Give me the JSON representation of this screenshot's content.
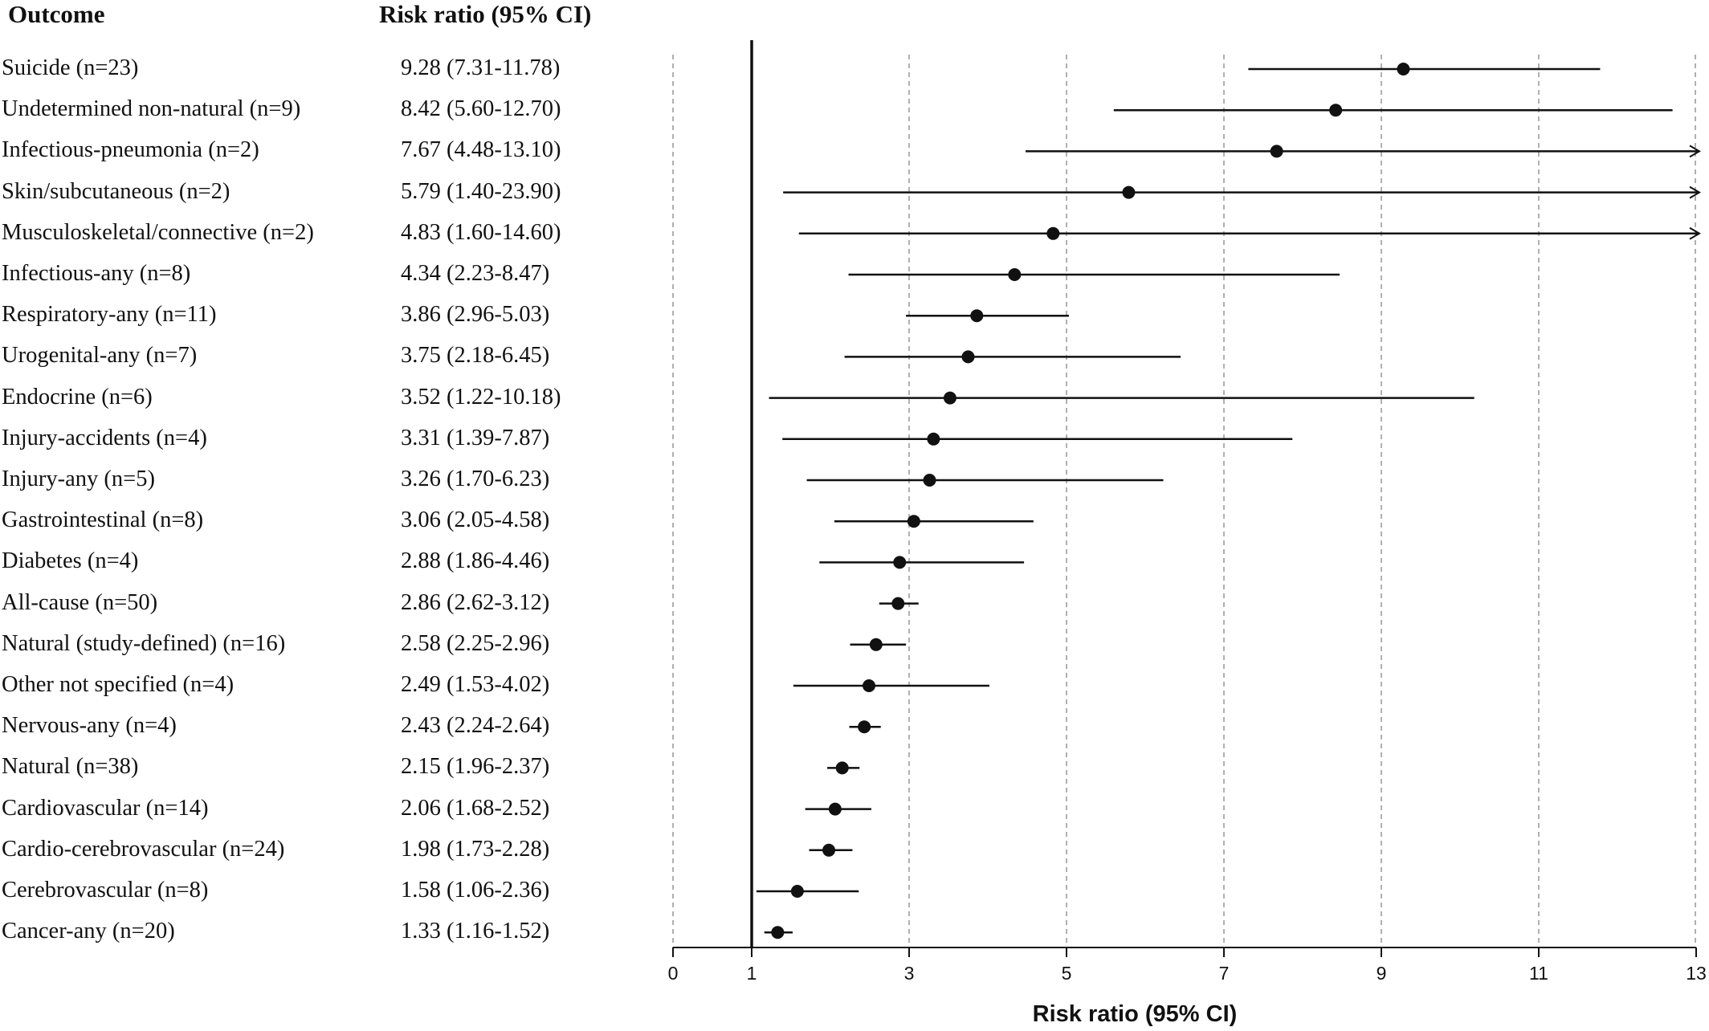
{
  "headers": {
    "outcome": "Outcome",
    "risk_ratio": "Risk ratio (95% CI)"
  },
  "chart_data": {
    "type": "forest",
    "xlabel": "Risk ratio (95% CI)",
    "xlim": [
      0,
      13
    ],
    "x_ticks": [
      0,
      1,
      3,
      5,
      7,
      9,
      11,
      13
    ],
    "reference_line": 1,
    "grid": "vertical dashed at odd ticks",
    "rows": [
      {
        "label": "Suicide (n=23)",
        "ci_text": "9.28 (7.31-11.78)",
        "rr": 9.28,
        "lower": 7.31,
        "upper": 11.78
      },
      {
        "label": "Undetermined non-natural (n=9)",
        "ci_text": "8.42 (5.60-12.70)",
        "rr": 8.42,
        "lower": 5.6,
        "upper": 12.7
      },
      {
        "label": "Infectious-pneumonia (n=2)",
        "ci_text": "7.67 (4.48-13.10)",
        "rr": 7.67,
        "lower": 4.48,
        "upper": 13.1
      },
      {
        "label": "Skin/subcutaneous (n=2)",
        "ci_text": "5.79 (1.40-23.90)",
        "rr": 5.79,
        "lower": 1.4,
        "upper": 23.9
      },
      {
        "label": "Musculoskeletal/connective (n=2)",
        "ci_text": "4.83 (1.60-14.60)",
        "rr": 4.83,
        "lower": 1.6,
        "upper": 14.6
      },
      {
        "label": "Infectious-any (n=8)",
        "ci_text": "4.34 (2.23-8.47)",
        "rr": 4.34,
        "lower": 2.23,
        "upper": 8.47
      },
      {
        "label": "Respiratory-any (n=11)",
        "ci_text": "3.86 (2.96-5.03)",
        "rr": 3.86,
        "lower": 2.96,
        "upper": 5.03
      },
      {
        "label": "Urogenital-any (n=7)",
        "ci_text": "3.75 (2.18-6.45)",
        "rr": 3.75,
        "lower": 2.18,
        "upper": 6.45
      },
      {
        "label": "Endocrine (n=6)",
        "ci_text": "3.52 (1.22-10.18)",
        "rr": 3.52,
        "lower": 1.22,
        "upper": 10.18
      },
      {
        "label": "Injury-accidents (n=4)",
        "ci_text": "3.31 (1.39-7.87)",
        "rr": 3.31,
        "lower": 1.39,
        "upper": 7.87
      },
      {
        "label": "Injury-any (n=5)",
        "ci_text": "3.26 (1.70-6.23)",
        "rr": 3.26,
        "lower": 1.7,
        "upper": 6.23
      },
      {
        "label": "Gastrointestinal (n=8)",
        "ci_text": "3.06 (2.05-4.58)",
        "rr": 3.06,
        "lower": 2.05,
        "upper": 4.58
      },
      {
        "label": "Diabetes (n=4)",
        "ci_text": "2.88 (1.86-4.46)",
        "rr": 2.88,
        "lower": 1.86,
        "upper": 4.46
      },
      {
        "label": "All-cause (n=50)",
        "ci_text": "2.86 (2.62-3.12)",
        "rr": 2.86,
        "lower": 2.62,
        "upper": 3.12
      },
      {
        "label": "Natural (study-defined) (n=16)",
        "ci_text": "2.58 (2.25-2.96)",
        "rr": 2.58,
        "lower": 2.25,
        "upper": 2.96
      },
      {
        "label": "Other not specified (n=4)",
        "ci_text": "2.49 (1.53-4.02)",
        "rr": 2.49,
        "lower": 1.53,
        "upper": 4.02
      },
      {
        "label": "Nervous-any (n=4)",
        "ci_text": "2.43 (2.24-2.64)",
        "rr": 2.43,
        "lower": 2.24,
        "upper": 2.64
      },
      {
        "label": "Natural (n=38)",
        "ci_text": "2.15 (1.96-2.37)",
        "rr": 2.15,
        "lower": 1.96,
        "upper": 2.37
      },
      {
        "label": "Cardiovascular (n=14)",
        "ci_text": "2.06 (1.68-2.52)",
        "rr": 2.06,
        "lower": 1.68,
        "upper": 2.52
      },
      {
        "label": "Cardio-cerebrovascular (n=24)",
        "ci_text": "1.98 (1.73-2.28)",
        "rr": 1.98,
        "lower": 1.73,
        "upper": 2.28
      },
      {
        "label": "Cerebrovascular (n=8)",
        "ci_text": "1.58 (1.06-2.36)",
        "rr": 1.58,
        "lower": 1.06,
        "upper": 2.36
      },
      {
        "label": "Cancer-any (n=20)",
        "ci_text": "1.33 (1.16-1.52)",
        "rr": 1.33,
        "lower": 1.16,
        "upper": 1.52
      }
    ]
  }
}
